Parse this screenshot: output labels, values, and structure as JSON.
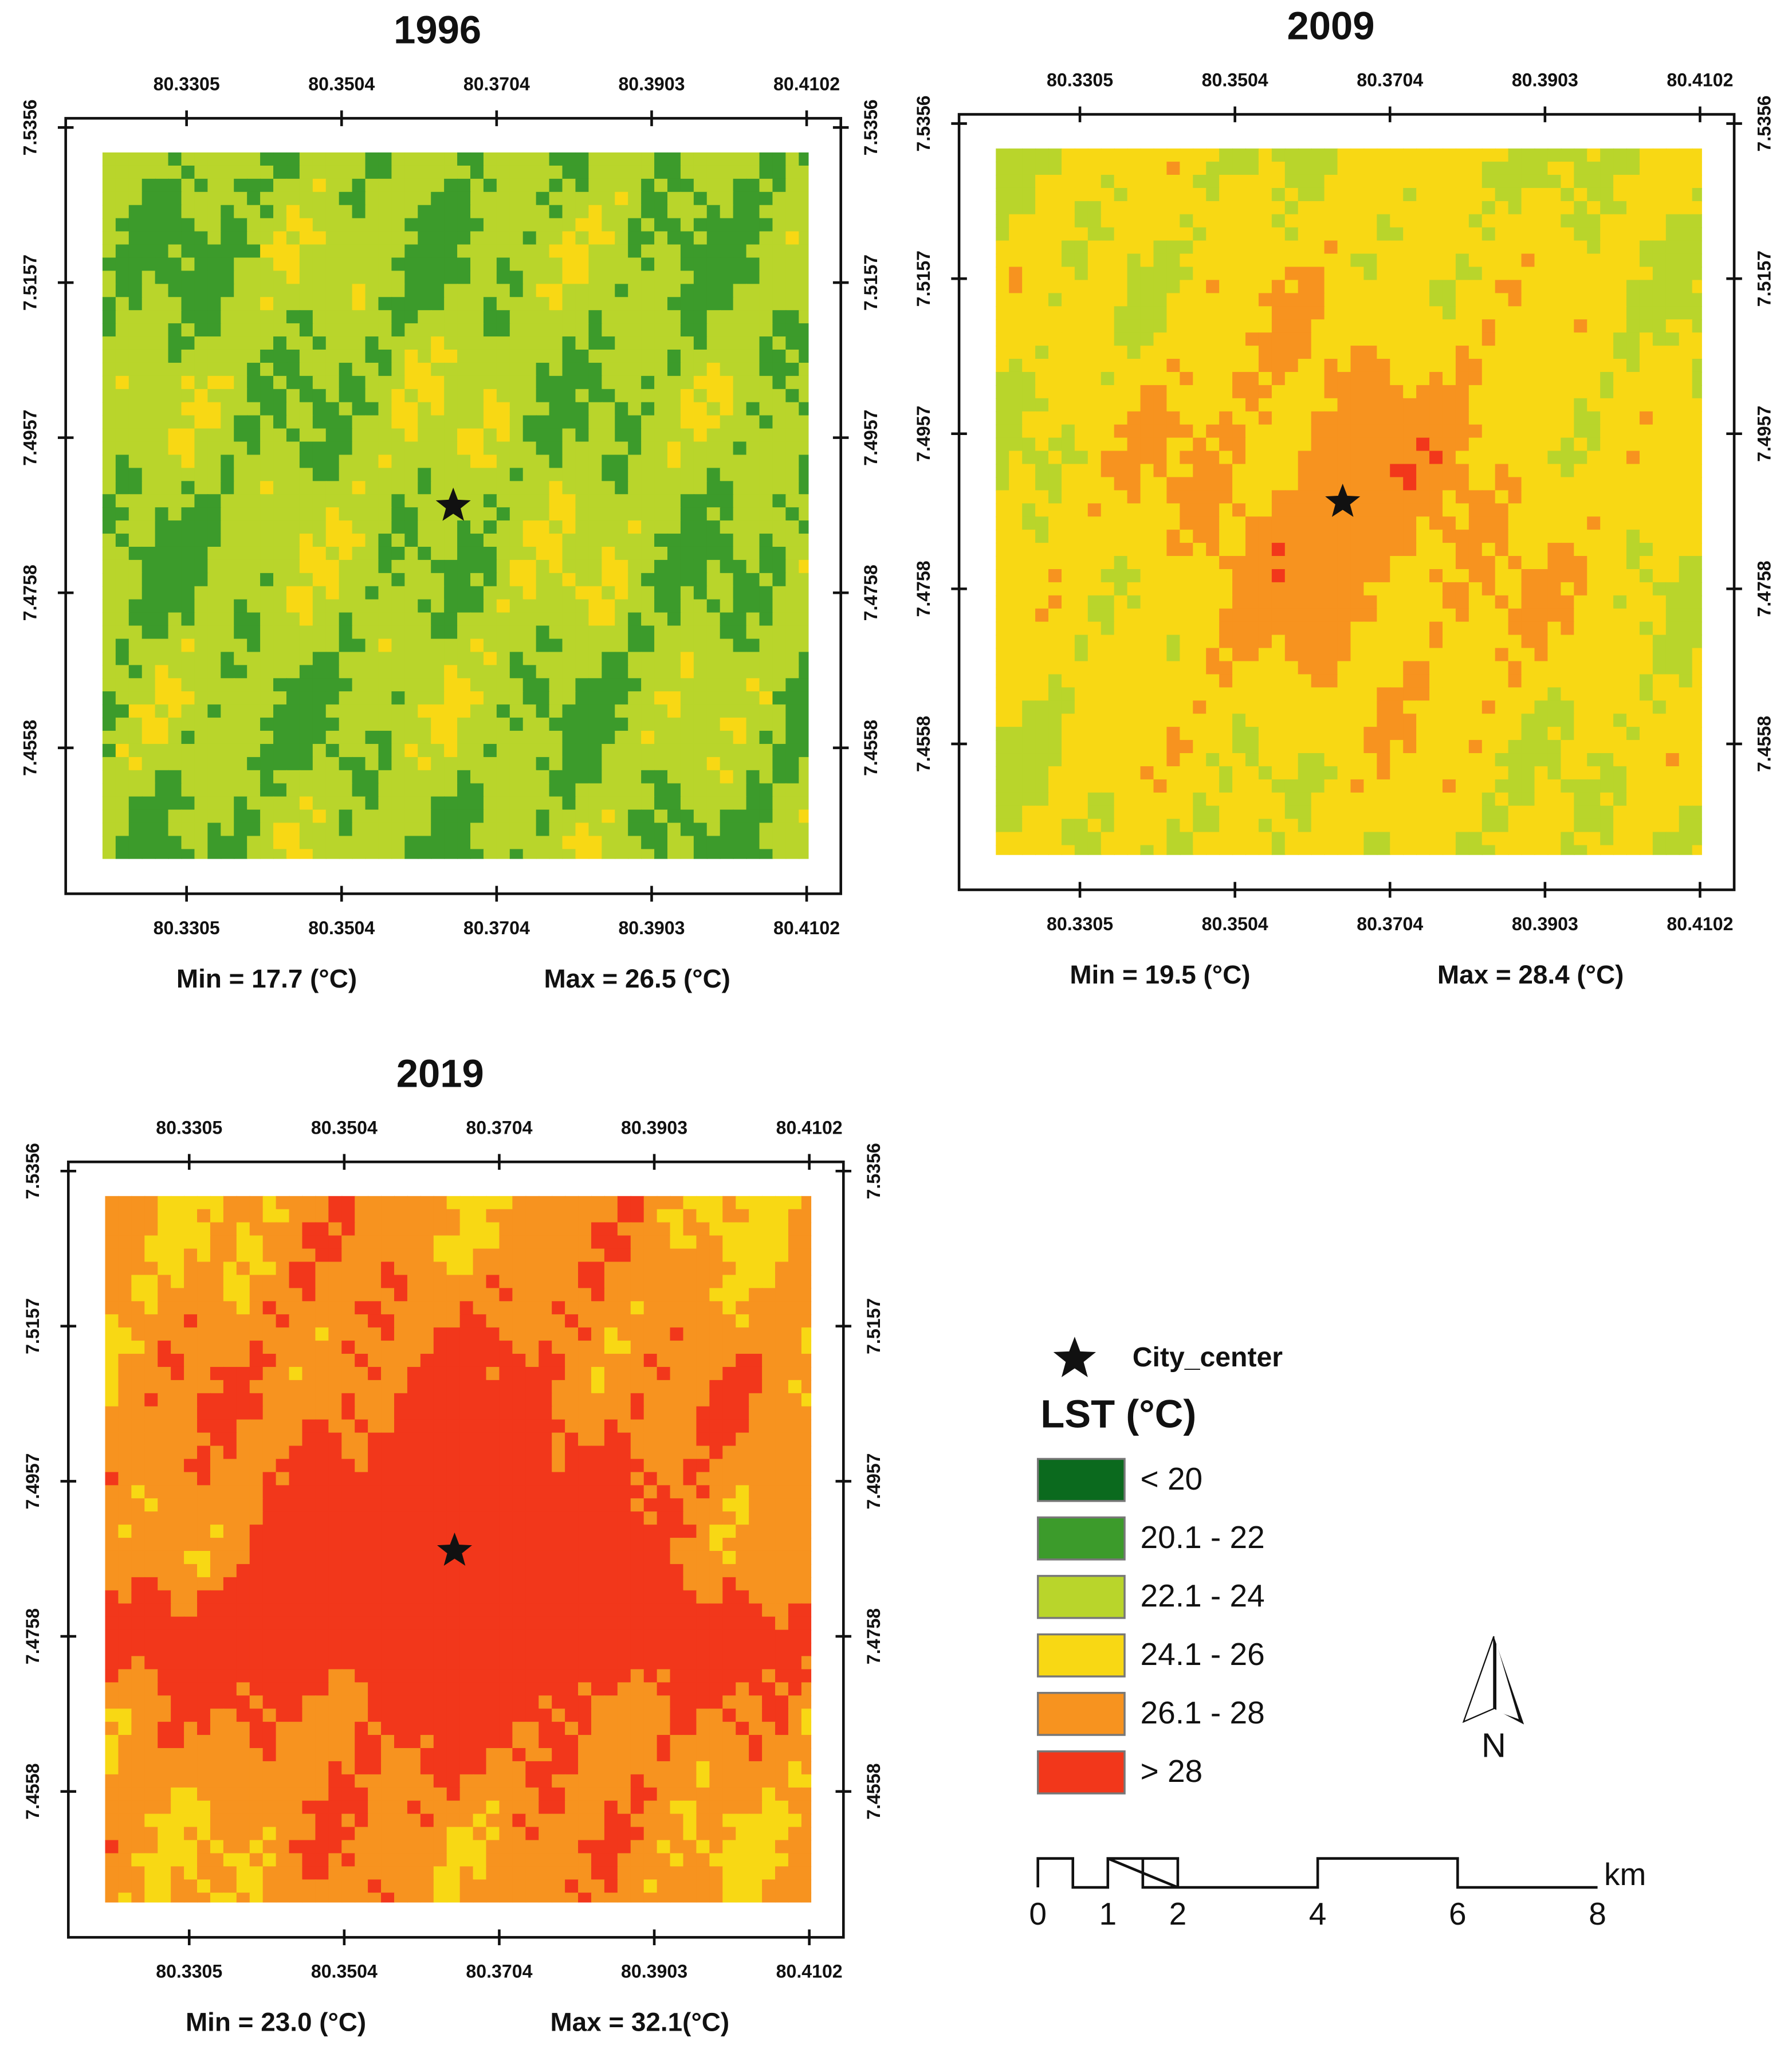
{
  "maps": [
    {
      "title": "1996",
      "min_label": "Min = 17.7 (°C)",
      "max_label": "Max = 26.5 (°C)"
    },
    {
      "title": "2009",
      "min_label": "Min = 19.5 (°C)",
      "max_label": "Max = 28.4 (°C)"
    },
    {
      "title": "2019",
      "min_label": "Min = 23.0 (°C)",
      "max_label": "Max = 32.1(°C)"
    }
  ],
  "lon_ticks": [
    "80.3305",
    "80.3504",
    "80.3704",
    "80.3903",
    "80.4102"
  ],
  "lat_ticks": [
    "7.5356",
    "7.5157",
    "7.4957",
    "7.4758",
    "7.4558"
  ],
  "legend": {
    "city": "City_center",
    "title": "LST (°C)",
    "classes": [
      {
        "label": "< 20",
        "color": "#0b6a1e"
      },
      {
        "label": "20.1 - 22",
        "color": "#3c9b2b"
      },
      {
        "label": "22.1 - 24",
        "color": "#b9d52b"
      },
      {
        "label": "24.1 - 26",
        "color": "#f8d814"
      },
      {
        "label": "26.1 - 28",
        "color": "#f7931f"
      },
      {
        "label": "> 28",
        "color": "#f2371b"
      }
    ]
  },
  "north": "N",
  "scale": {
    "ticks": [
      0,
      1,
      2,
      4,
      6,
      8
    ],
    "unit": "km"
  }
}
